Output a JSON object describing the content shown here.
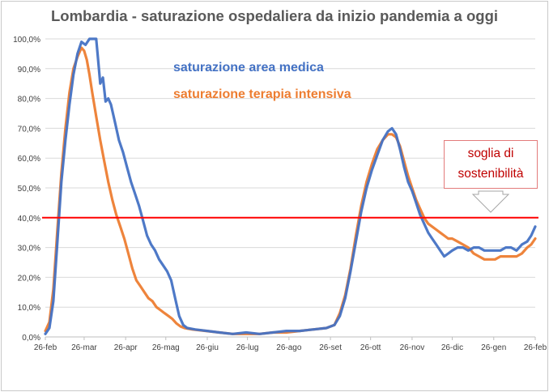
{
  "chart_data": {
    "type": "line",
    "title": "Lombardia - saturazione ospedaliera da inizio pandemia a oggi",
    "xlabel": "",
    "ylabel": "",
    "x_tick_labels": [
      "26-feb",
      "26-mar",
      "26-apr",
      "26-mag",
      "26-giu",
      "26-lug",
      "26-ago",
      "26-set",
      "26-ott",
      "26-nov",
      "26-dic",
      "26-gen",
      "26-feb"
    ],
    "x_tick_days": [
      0,
      29,
      60,
      90,
      121,
      151,
      182,
      213,
      243,
      274,
      304,
      335,
      366
    ],
    "x_unit": "days since 26-feb",
    "ylim": [
      0,
      100
    ],
    "y_ticks": [
      0,
      10,
      20,
      30,
      40,
      50,
      60,
      70,
      80,
      90,
      100
    ],
    "y_tick_labels": [
      "0,0%",
      "10,0%",
      "20,0%",
      "30,0%",
      "40,0%",
      "50,0%",
      "60,0%",
      "70,0%",
      "80,0%",
      "90,0%",
      "100,0%"
    ],
    "grid": true,
    "legend_position": "top-left",
    "threshold": {
      "value": 40,
      "label": "soglia di sostenibilità",
      "color": "#FF0000"
    },
    "series": [
      {
        "name": "saturazione area medica",
        "color": "#4472C4",
        "points": [
          [
            0,
            1
          ],
          [
            3,
            3
          ],
          [
            6,
            12
          ],
          [
            9,
            32
          ],
          [
            12,
            52
          ],
          [
            15,
            66
          ],
          [
            18,
            78
          ],
          [
            21,
            88
          ],
          [
            24,
            95
          ],
          [
            27,
            99
          ],
          [
            30,
            98
          ],
          [
            33,
            100
          ],
          [
            36,
            100
          ],
          [
            38,
            100
          ],
          [
            39,
            95
          ],
          [
            41,
            85
          ],
          [
            43,
            87
          ],
          [
            45,
            79
          ],
          [
            47,
            80
          ],
          [
            49,
            78
          ],
          [
            52,
            72
          ],
          [
            55,
            66
          ],
          [
            58,
            62
          ],
          [
            61,
            57
          ],
          [
            64,
            52
          ],
          [
            67,
            48
          ],
          [
            70,
            44
          ],
          [
            73,
            39
          ],
          [
            76,
            34
          ],
          [
            79,
            31
          ],
          [
            82,
            29
          ],
          [
            85,
            26
          ],
          [
            88,
            24
          ],
          [
            91,
            22
          ],
          [
            94,
            19
          ],
          [
            97,
            13
          ],
          [
            100,
            7
          ],
          [
            103,
            4
          ],
          [
            106,
            3
          ],
          [
            112,
            2.5
          ],
          [
            121,
            2
          ],
          [
            130,
            1.5
          ],
          [
            140,
            1
          ],
          [
            150,
            1.5
          ],
          [
            160,
            1
          ],
          [
            170,
            1.5
          ],
          [
            180,
            2
          ],
          [
            190,
            2
          ],
          [
            200,
            2.5
          ],
          [
            210,
            3
          ],
          [
            216,
            4
          ],
          [
            220,
            7
          ],
          [
            224,
            13
          ],
          [
            228,
            22
          ],
          [
            232,
            32
          ],
          [
            236,
            42
          ],
          [
            240,
            50
          ],
          [
            244,
            56
          ],
          [
            248,
            61
          ],
          [
            252,
            66
          ],
          [
            256,
            69
          ],
          [
            259,
            70
          ],
          [
            262,
            68
          ],
          [
            265,
            63
          ],
          [
            268,
            57
          ],
          [
            271,
            52
          ],
          [
            274,
            49
          ],
          [
            277,
            45
          ],
          [
            280,
            41
          ],
          [
            283,
            38
          ],
          [
            286,
            35
          ],
          [
            289,
            33
          ],
          [
            292,
            31
          ],
          [
            295,
            29
          ],
          [
            298,
            27
          ],
          [
            301,
            28
          ],
          [
            304,
            29
          ],
          [
            308,
            30
          ],
          [
            312,
            30
          ],
          [
            316,
            29
          ],
          [
            320,
            30
          ],
          [
            324,
            30
          ],
          [
            328,
            29
          ],
          [
            332,
            29
          ],
          [
            336,
            29
          ],
          [
            340,
            29
          ],
          [
            344,
            30
          ],
          [
            348,
            30
          ],
          [
            352,
            29
          ],
          [
            356,
            31
          ],
          [
            360,
            32
          ],
          [
            363,
            34
          ],
          [
            366,
            37
          ]
        ]
      },
      {
        "name": "saturazione terapia intensiva",
        "color": "#ED7D31",
        "points": [
          [
            0,
            2
          ],
          [
            3,
            5
          ],
          [
            6,
            16
          ],
          [
            9,
            36
          ],
          [
            12,
            55
          ],
          [
            15,
            70
          ],
          [
            18,
            82
          ],
          [
            21,
            90
          ],
          [
            24,
            94
          ],
          [
            27,
            97
          ],
          [
            29,
            96
          ],
          [
            31,
            93
          ],
          [
            33,
            88
          ],
          [
            35,
            82
          ],
          [
            38,
            74
          ],
          [
            41,
            66
          ],
          [
            44,
            59
          ],
          [
            47,
            52
          ],
          [
            50,
            46
          ],
          [
            53,
            41
          ],
          [
            56,
            37
          ],
          [
            59,
            33
          ],
          [
            62,
            28
          ],
          [
            65,
            23
          ],
          [
            68,
            19
          ],
          [
            71,
            17
          ],
          [
            74,
            15
          ],
          [
            77,
            13
          ],
          [
            80,
            12
          ],
          [
            83,
            10
          ],
          [
            86,
            9
          ],
          [
            89,
            8
          ],
          [
            92,
            7
          ],
          [
            95,
            6
          ],
          [
            98,
            4.5
          ],
          [
            101,
            3.5
          ],
          [
            104,
            3
          ],
          [
            110,
            2.5
          ],
          [
            120,
            2
          ],
          [
            130,
            1.5
          ],
          [
            140,
            1
          ],
          [
            150,
            1
          ],
          [
            160,
            1
          ],
          [
            170,
            1.5
          ],
          [
            180,
            1.5
          ],
          [
            190,
            2
          ],
          [
            200,
            2.5
          ],
          [
            210,
            3
          ],
          [
            216,
            4
          ],
          [
            220,
            8
          ],
          [
            224,
            14
          ],
          [
            228,
            23
          ],
          [
            232,
            34
          ],
          [
            236,
            44
          ],
          [
            240,
            52
          ],
          [
            244,
            58
          ],
          [
            248,
            63
          ],
          [
            252,
            66
          ],
          [
            256,
            68
          ],
          [
            259,
            68
          ],
          [
            262,
            67
          ],
          [
            265,
            64
          ],
          [
            268,
            59
          ],
          [
            271,
            54
          ],
          [
            274,
            50
          ],
          [
            277,
            46
          ],
          [
            280,
            43
          ],
          [
            283,
            40
          ],
          [
            286,
            38
          ],
          [
            289,
            37
          ],
          [
            292,
            36
          ],
          [
            295,
            35
          ],
          [
            298,
            34
          ],
          [
            301,
            33
          ],
          [
            304,
            33
          ],
          [
            308,
            32
          ],
          [
            312,
            31
          ],
          [
            316,
            30
          ],
          [
            320,
            28
          ],
          [
            324,
            27
          ],
          [
            328,
            26
          ],
          [
            332,
            26
          ],
          [
            336,
            26
          ],
          [
            340,
            27
          ],
          [
            344,
            27
          ],
          [
            348,
            27
          ],
          [
            352,
            27
          ],
          [
            356,
            28
          ],
          [
            360,
            30
          ],
          [
            363,
            31
          ],
          [
            366,
            33
          ]
        ]
      }
    ]
  },
  "legend": {
    "medica_label": "saturazione area medica",
    "intensiva_label": "saturazione terapia intensiva"
  },
  "callout": {
    "line1": "soglia di",
    "line2": "sostenibilità"
  }
}
